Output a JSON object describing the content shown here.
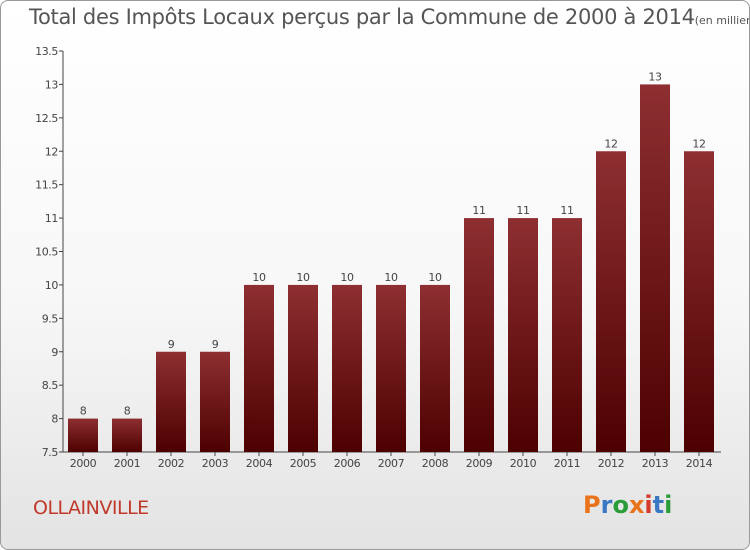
{
  "title": "Total des Impôts Locaux perçus par la Commune de 2000 à 2014",
  "unit": "(en milliers d'€)",
  "commune": "OLLAINVILLE",
  "logo": {
    "text": "Proxiti",
    "colors": [
      "#e8731a",
      "#3a78c4",
      "#2a9d3a",
      "#e8731a",
      "#d63a2a",
      "#3a78c4",
      "#2a9d3a"
    ]
  },
  "chart_data": {
    "type": "bar",
    "title": "Total des Impôts Locaux perçus par la Commune de 2000 à 2014",
    "subtitle": "(en milliers d'€)",
    "xlabel": "",
    "ylabel": "",
    "categories": [
      "2000",
      "2001",
      "2002",
      "2003",
      "2004",
      "2005",
      "2006",
      "2007",
      "2008",
      "2009",
      "2010",
      "2011",
      "2012",
      "2013",
      "2014"
    ],
    "values": [
      8,
      8,
      9,
      9,
      10,
      10,
      10,
      10,
      10,
      11,
      11,
      11,
      12,
      13,
      12
    ],
    "data_labels": [
      "8",
      "8",
      "9",
      "9",
      "10",
      "10",
      "10",
      "10",
      "10",
      "11",
      "11",
      "11",
      "12",
      "13",
      "12"
    ],
    "ylim": [
      7.5,
      13.5
    ],
    "yticks": [
      7.5,
      8,
      8.5,
      9,
      9.5,
      10,
      10.5,
      11,
      11.5,
      12,
      12.5,
      13,
      13.5
    ],
    "ytick_labels": [
      "7.5",
      "8",
      "8.5",
      "9",
      "9.5",
      "10",
      "10.5",
      "11",
      "11.5",
      "12",
      "12.5",
      "13",
      "13.5"
    ],
    "grid": false,
    "bar_color": "#7a1a1a"
  }
}
